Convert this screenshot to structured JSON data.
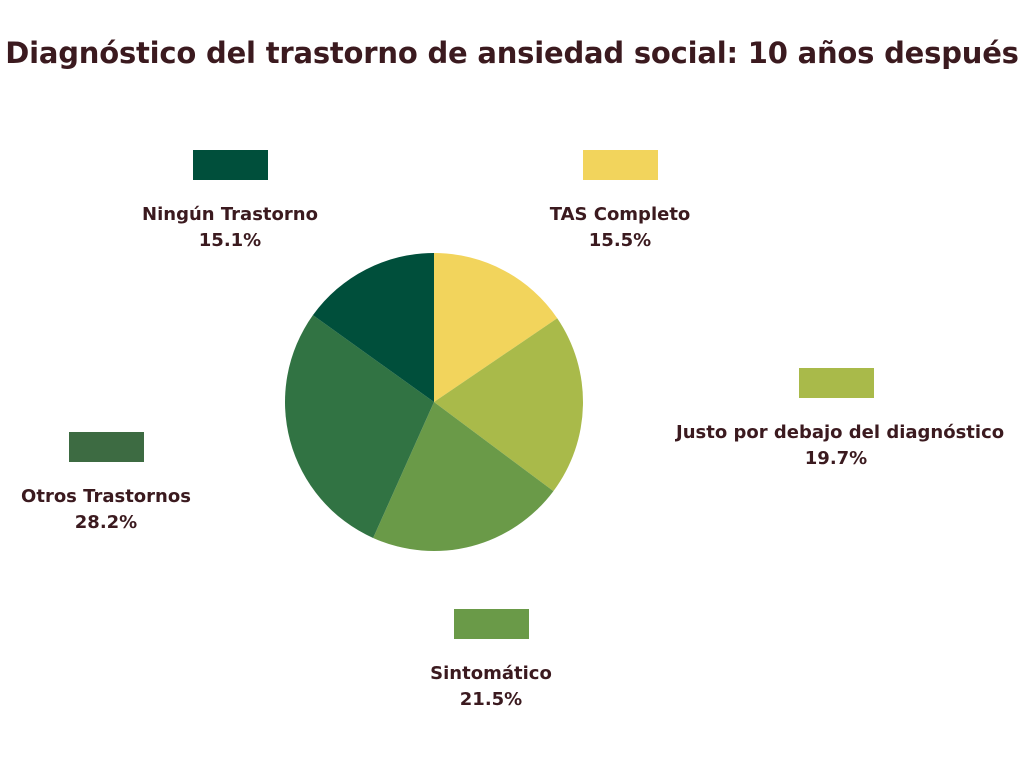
{
  "chart_data": {
    "type": "pie",
    "title": "Diagnóstico del trastorno de ansiedad social: 10 años después",
    "slices": [
      {
        "label": "Ningún Trastorno",
        "value": 15.1,
        "display": "15.1%",
        "color": "#004f3b"
      },
      {
        "label": "TAS Completo",
        "value": 15.5,
        "display": "15.5%",
        "color": "#f2d45c"
      },
      {
        "label": "Justo por debajo del diagnóstico",
        "value": 19.7,
        "display": "19.7%",
        "color": "#a9ba4a"
      },
      {
        "label": "Sintomático",
        "value": 21.5,
        "display": "21.5%",
        "color": "#6a9a48"
      },
      {
        "label": "Otros Trastornos",
        "value": 28.2,
        "display": "28.2%",
        "color": "#317343"
      }
    ],
    "legend_swatch_colors": [
      "#004f3b",
      "#f2d45c",
      "#a9ba4a",
      "#6a9a48",
      "#3d6b42"
    ]
  }
}
